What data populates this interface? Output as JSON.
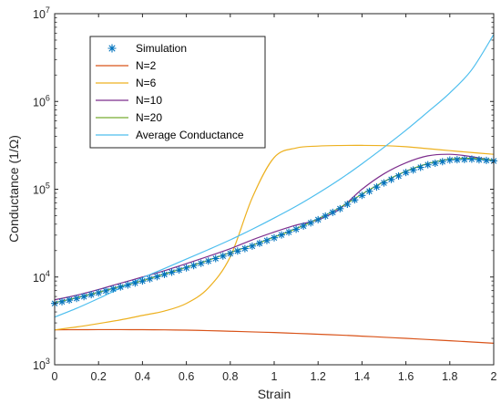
{
  "chart_data": {
    "type": "line",
    "xlabel": "Strain",
    "ylabel": "Conductance (1/Ω)",
    "xlim": [
      0,
      2
    ],
    "ylim": [
      1000,
      10000000
    ],
    "yscale": "log",
    "x_ticks": [
      0,
      0.2,
      0.4,
      0.6,
      0.8,
      1,
      1.2,
      1.4,
      1.6,
      1.8,
      2
    ],
    "x_tick_labels": [
      "0",
      "0.2",
      "0.4",
      "0.6",
      "0.8",
      "1",
      "1.2",
      "1.4",
      "1.6",
      "1.8",
      "2"
    ],
    "y_ticks": [
      {
        "value": 1000,
        "base": "10",
        "exp": "3"
      },
      {
        "value": 10000,
        "base": "10",
        "exp": "4"
      },
      {
        "value": 100000,
        "base": "10",
        "exp": "5"
      },
      {
        "value": 1000000,
        "base": "10",
        "exp": "6"
      },
      {
        "value": 10000000,
        "base": "10",
        "exp": "7"
      }
    ],
    "grid": false,
    "legend_position": "top-left",
    "x": [
      0,
      0.1,
      0.2,
      0.3,
      0.4,
      0.5,
      0.6,
      0.7,
      0.8,
      0.9,
      1.0,
      1.1,
      1.2,
      1.3,
      1.4,
      1.5,
      1.6,
      1.7,
      1.8,
      1.9,
      2.0
    ],
    "series": [
      {
        "name": "Simulation",
        "color": "#0072BD",
        "style": "markers",
        "marker": "*",
        "values": [
          5000,
          5700,
          6600,
          7700,
          9000,
          10700,
          12700,
          15200,
          18500,
          22500,
          28000,
          35000,
          45000,
          60000,
          85000,
          118000,
          155000,
          190000,
          215000,
          220000,
          210000
        ]
      },
      {
        "name": "N=2",
        "color": "#D95319",
        "style": "line",
        "values": [
          2500,
          2510,
          2515,
          2515,
          2510,
          2500,
          2480,
          2450,
          2410,
          2370,
          2330,
          2280,
          2230,
          2180,
          2120,
          2060,
          2000,
          1940,
          1880,
          1820,
          1760
        ]
      },
      {
        "name": "N=6",
        "color": "#EDB120",
        "style": "line",
        "values": [
          2500,
          2700,
          2950,
          3250,
          3650,
          4100,
          5000,
          7500,
          17000,
          80000,
          230000,
          295000,
          310000,
          315000,
          316000,
          314000,
          305000,
          290000,
          275000,
          262000,
          250000
        ]
      },
      {
        "name": "N=10",
        "color": "#7E2F8E",
        "style": "line",
        "values": [
          5500,
          6200,
          7200,
          8500,
          10000,
          11800,
          14200,
          17200,
          21000,
          26500,
          32500,
          39000,
          45000,
          60000,
          100000,
          150000,
          200000,
          240000,
          250000,
          235000,
          210000
        ]
      },
      {
        "name": "N=20",
        "color": "#77AC30",
        "style": "line",
        "values": [
          5100,
          5800,
          6700,
          7800,
          9100,
          10800,
          12900,
          15500,
          19000,
          23000,
          28500,
          35500,
          46000,
          62000,
          88000,
          122000,
          160000,
          196000,
          220000,
          225000,
          215000
        ]
      },
      {
        "name": "Average Conductance",
        "color": "#4DBEEE",
        "style": "line",
        "values": [
          3500,
          4400,
          5700,
          7500,
          9800,
          12500,
          16000,
          20500,
          26500,
          35000,
          47000,
          64000,
          90000,
          130000,
          195000,
          300000,
          470000,
          760000,
          1250000,
          2300000,
          5800000
        ]
      }
    ]
  }
}
